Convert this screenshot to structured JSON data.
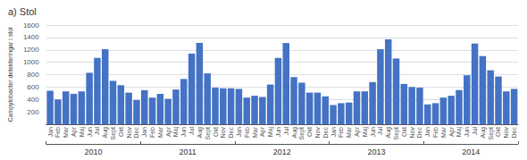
{
  "chart_data": {
    "type": "bar",
    "title": "a) Stol",
    "ylabel": "Campylobacter detekteringar i stol",
    "categories": [
      "Jan",
      "Feb",
      "Mar",
      "Apr",
      "Maj",
      "Jun",
      "Jul",
      "Aug",
      "Sept",
      "Okt",
      "Nov",
      "Dec",
      "Jan",
      "Feb",
      "Mar",
      "Apr",
      "Maj",
      "Jun",
      "Jul",
      "Aug",
      "Sept",
      "Okt",
      "Nov",
      "Dec",
      "Jan",
      "Feb",
      "Mar",
      "Apr",
      "Maj",
      "Jun",
      "Jul",
      "Aug",
      "Sept",
      "Okt",
      "Nov",
      "Dec",
      "Jan",
      "Feb",
      "Mar",
      "Apr",
      "Maj",
      "Jun",
      "Jul",
      "Aug",
      "Sept",
      "Okt",
      "Nov",
      "Dec",
      "Jan",
      "Feb",
      "Mar",
      "Apr",
      "Maj",
      "Jun",
      "Jul",
      "Aug",
      "Sept",
      "Okt",
      "Nov",
      "Dec"
    ],
    "x_groups": [
      "2010",
      "2011",
      "2012",
      "2013",
      "2014"
    ],
    "values": [
      540,
      400,
      530,
      490,
      530,
      830,
      1070,
      1210,
      700,
      630,
      510,
      390,
      550,
      430,
      490,
      410,
      560,
      730,
      1140,
      1310,
      820,
      590,
      580,
      580,
      570,
      430,
      460,
      440,
      640,
      1070,
      1310,
      760,
      670,
      510,
      510,
      450,
      310,
      340,
      350,
      530,
      530,
      680,
      1210,
      1370,
      1060,
      650,
      600,
      590,
      320,
      340,
      430,
      460,
      550,
      790,
      1300,
      1100,
      870,
      770,
      530,
      570
    ],
    "color": "#4472C4",
    "ylim": [
      0,
      1600
    ],
    "yticks": [
      {
        "value": 0,
        "label": null
      },
      200,
      400,
      600,
      800,
      1000,
      1200,
      1400,
      1600
    ],
    "grid": true
  }
}
